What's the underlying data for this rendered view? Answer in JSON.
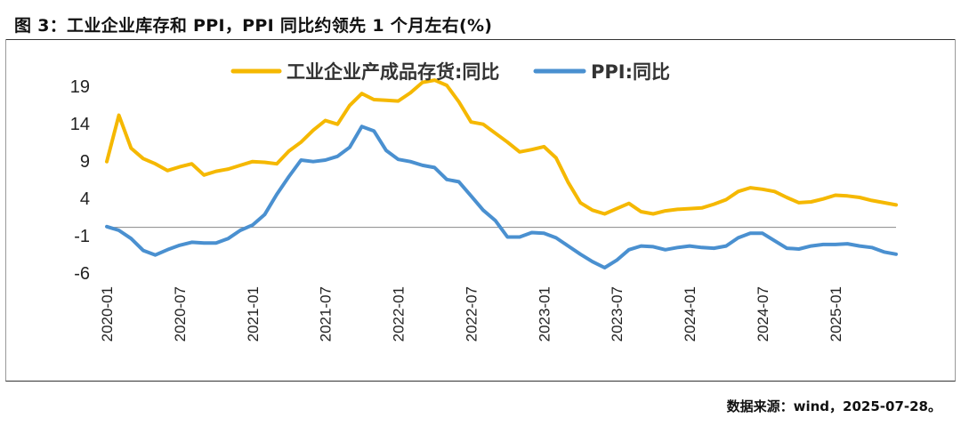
{
  "title": "图 3：工业企业库存和 PPI，PPI 同比约领先 1 个月左右(%)",
  "source": "数据来源：wind，2025-07-28。",
  "chart_data": {
    "type": "line",
    "title": "图 3：工业企业库存和 PPI，PPI 同比约领先 1 个月左右(%)",
    "xlabel": "",
    "ylabel": "",
    "ylim": [
      -6,
      19
    ],
    "yticks": [
      19,
      14,
      9,
      4,
      -1,
      -6
    ],
    "grid": false,
    "legend_position": "top",
    "x": [
      "2020-01",
      "2020-02",
      "2020-03",
      "2020-04",
      "2020-05",
      "2020-06",
      "2020-07",
      "2020-08",
      "2020-09",
      "2020-10",
      "2020-11",
      "2020-12",
      "2021-01",
      "2021-02",
      "2021-03",
      "2021-04",
      "2021-05",
      "2021-06",
      "2021-07",
      "2021-08",
      "2021-09",
      "2021-10",
      "2021-11",
      "2021-12",
      "2022-01",
      "2022-02",
      "2022-03",
      "2022-04",
      "2022-05",
      "2022-06",
      "2022-07",
      "2022-08",
      "2022-09",
      "2022-10",
      "2022-11",
      "2022-12",
      "2023-01",
      "2023-02",
      "2023-03",
      "2023-04",
      "2023-05",
      "2023-06",
      "2023-07",
      "2023-08",
      "2023-09",
      "2023-10",
      "2023-11",
      "2023-12",
      "2024-01",
      "2024-02",
      "2024-03",
      "2024-04",
      "2024-05",
      "2024-06",
      "2024-07",
      "2024-08",
      "2024-09",
      "2024-10",
      "2024-11",
      "2024-12",
      "2025-01",
      "2025-02",
      "2025-03",
      "2025-04",
      "2025-05",
      "2025-06"
    ],
    "xtick_labels": [
      "2020-01",
      "2020-07",
      "2021-01",
      "2021-07",
      "2022-01",
      "2022-07",
      "2023-01",
      "2023-07",
      "2024-01",
      "2024-07",
      "2025-01"
    ],
    "series": [
      {
        "name": "工业企业产成品存货:同比",
        "color": "#F5B800",
        "values": [
          8.8,
          15,
          10.6,
          9.2,
          8.5,
          7.6,
          8.1,
          8.5,
          7,
          7.5,
          7.8,
          8.3,
          8.8,
          8.7,
          8.5,
          10.2,
          11.4,
          13,
          14.3,
          13.8,
          16.3,
          17.9,
          17.1,
          17,
          16.9,
          18,
          19.4,
          19.7,
          19,
          16.8,
          14.1,
          13.8,
          12.6,
          11.4,
          10.1,
          10.4,
          10.8,
          9.3,
          6,
          3.3,
          2.3,
          1.8,
          2.5,
          3.2,
          2.1,
          1.8,
          2.2,
          2.4,
          2.5,
          2.6,
          3.1,
          3.7,
          4.8,
          5.3,
          5.1,
          4.8,
          4,
          3.3,
          3.4,
          3.8,
          4.3,
          4.2,
          4,
          3.6,
          3.3,
          3
        ]
      },
      {
        "name": "PPI:同比",
        "color": "#4A90D0",
        "values": [
          0.1,
          -0.4,
          -1.5,
          -3.1,
          -3.7,
          -3,
          -2.4,
          -2,
          -2.1,
          -2.1,
          -1.5,
          -0.4,
          0.3,
          1.7,
          4.4,
          6.8,
          9,
          8.8,
          9,
          9.5,
          10.7,
          13.5,
          12.9,
          10.3,
          9.1,
          8.8,
          8.3,
          8,
          6.4,
          6.1,
          4.2,
          2.3,
          0.9,
          -1.3,
          -1.3,
          -0.7,
          -0.8,
          -1.4,
          -2.5,
          -3.6,
          -4.6,
          -5.4,
          -4.4,
          -3,
          -2.5,
          -2.6,
          -3,
          -2.7,
          -2.5,
          -2.7,
          -2.8,
          -2.5,
          -1.4,
          -0.8,
          -0.8,
          -1.8,
          -2.8,
          -2.9,
          -2.5,
          -2.3,
          -2.3,
          -2.2,
          -2.5,
          -2.7,
          -3.3,
          -3.6
        ]
      }
    ]
  }
}
